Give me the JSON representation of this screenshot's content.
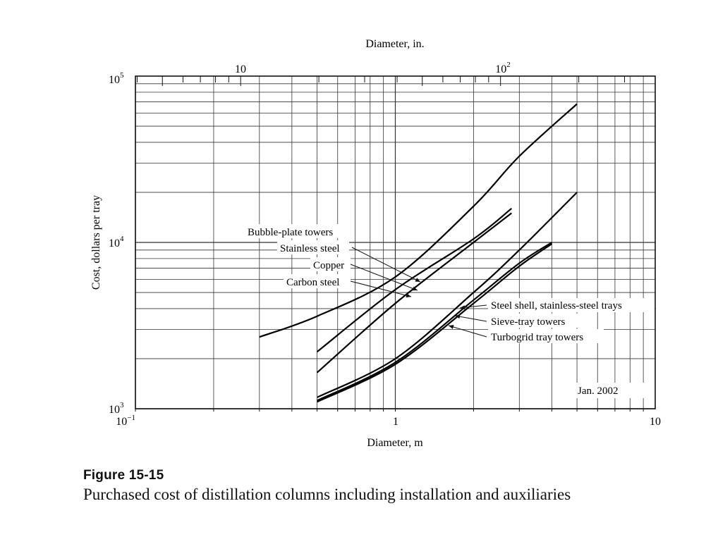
{
  "chart_data": {
    "type": "line",
    "x_scale": "log",
    "y_scale": "log",
    "xlim": [
      0.1,
      10
    ],
    "ylim": [
      1000,
      100000
    ],
    "xlabel": "Diameter, m",
    "ylabel": "Cost, dollars per tray",
    "top_axis_label": "Diameter, in.",
    "bottom_ticks": [
      {
        "value": 0.1,
        "base": "10",
        "exp": "−1"
      },
      {
        "value": 1,
        "base": "1",
        "exp": ""
      },
      {
        "value": 10,
        "base": "10",
        "exp": ""
      }
    ],
    "top_ticks": [
      {
        "value_in": 10,
        "base": "10",
        "exp": ""
      },
      {
        "value_in": 100,
        "base": "10",
        "exp": "2"
      }
    ],
    "left_ticks": [
      {
        "value": 100000,
        "base": "10",
        "exp": "5"
      },
      {
        "value": 10000,
        "base": "10",
        "exp": "4"
      },
      {
        "value": 1000,
        "base": "10",
        "exp": "3"
      }
    ],
    "series": [
      {
        "name": "Bubble-plate towers: Stainless steel",
        "points": [
          [
            0.5,
            2200
          ],
          [
            1.0,
            5200
          ],
          [
            2.0,
            10500
          ],
          [
            2.8,
            16000
          ]
        ]
      },
      {
        "name": "Bubble-plate towers: Copper",
        "points": [
          [
            0.3,
            2700
          ],
          [
            0.5,
            3600
          ],
          [
            1.0,
            6200
          ],
          [
            2.0,
            16500
          ],
          [
            3.0,
            33000
          ],
          [
            5.0,
            68000
          ]
        ]
      },
      {
        "name": "Bubble-plate towers: Carbon steel",
        "points": [
          [
            0.5,
            1650
          ],
          [
            1.0,
            4300
          ],
          [
            2.0,
            10000
          ],
          [
            2.8,
            15000
          ]
        ]
      },
      {
        "name": "Steel shell, stainless-steel trays",
        "points": [
          [
            0.5,
            1170
          ],
          [
            1.0,
            2000
          ],
          [
            2.0,
            5000
          ],
          [
            3.0,
            9000
          ],
          [
            5.0,
            20000
          ]
        ]
      },
      {
        "name": "Sieve-tray towers",
        "points": [
          [
            0.5,
            1120
          ],
          [
            1.0,
            1900
          ],
          [
            2.0,
            4500
          ],
          [
            3.0,
            7500
          ],
          [
            4.0,
            10000
          ]
        ]
      },
      {
        "name": "Turbogrid tray towers",
        "points": [
          [
            0.5,
            1100
          ],
          [
            1.0,
            1850
          ],
          [
            2.0,
            4300
          ],
          [
            3.0,
            7200
          ],
          [
            4.0,
            9800
          ]
        ]
      }
    ],
    "annotations": {
      "bubble_header": "Bubble-plate towers",
      "stainless": "Stainless steel",
      "copper": "Copper",
      "carbon": "Carbon steel",
      "steel_shell": "Steel shell, stainless-steel trays",
      "sieve": "Sieve-tray towers",
      "turbogrid": "Turbogrid tray towers",
      "date": "Jan. 2002"
    }
  },
  "caption": {
    "title": "Figure 15-15",
    "text": "Purchased cost of distillation columns including installation and auxiliaries"
  }
}
